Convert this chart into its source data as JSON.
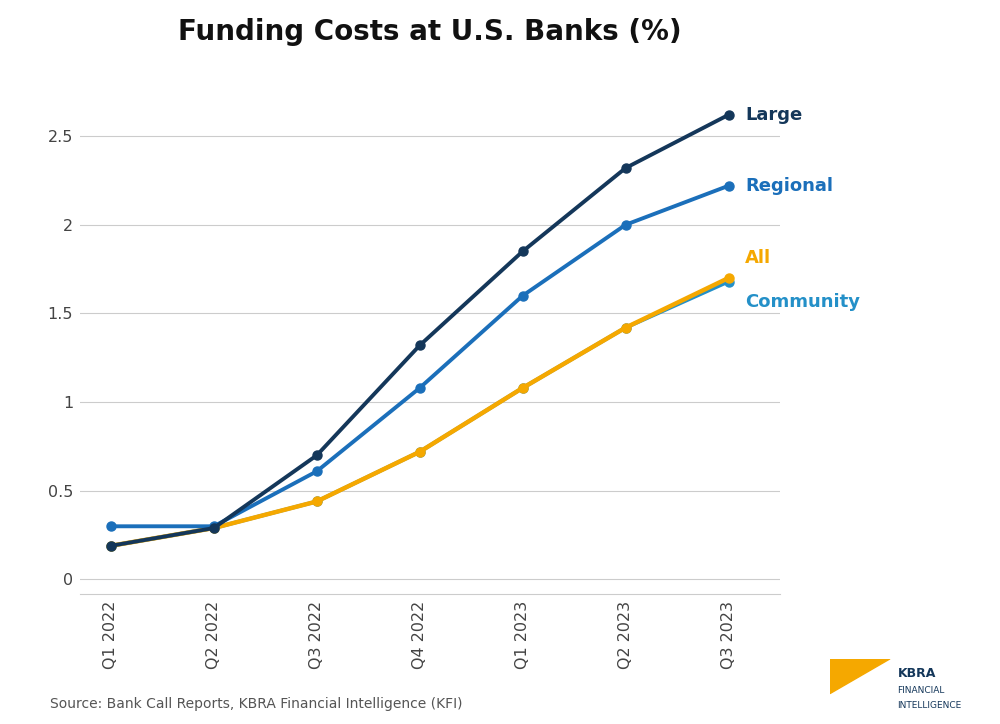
{
  "title": "Funding Costs at U.S. Banks (%)",
  "categories": [
    "Q1 2022",
    "Q2 2022",
    "Q3 2022",
    "Q4 2022",
    "Q1 2023",
    "Q2 2023",
    "Q3 2023"
  ],
  "series": {
    "Large": [
      0.19,
      0.29,
      0.7,
      1.32,
      1.85,
      2.32,
      2.62
    ],
    "Regional": [
      0.3,
      0.3,
      0.61,
      1.08,
      1.6,
      2.0,
      2.22
    ],
    "All": [
      0.19,
      0.29,
      0.44,
      0.72,
      1.08,
      1.42,
      1.7
    ],
    "Community": [
      0.19,
      0.29,
      0.44,
      0.72,
      1.08,
      1.42,
      1.68
    ]
  },
  "colors": {
    "Large": "#14375a",
    "Regional": "#1b6fba",
    "All": "#f5a800",
    "Community": "#2490c8"
  },
  "linewidths": {
    "Large": 2.8,
    "Regional": 2.8,
    "All": 3.2,
    "Community": 2.8
  },
  "label_colors": {
    "Large": "#14375a",
    "Regional": "#1b6fba",
    "All": "#f5a800",
    "Community": "#2490c8"
  },
  "ylim": [
    -0.08,
    2.9
  ],
  "yticks": [
    0,
    0.5,
    1.0,
    1.5,
    2.0,
    2.5
  ],
  "ytick_labels": [
    "0",
    "0.5",
    "1",
    "1.5",
    "2",
    "2.5"
  ],
  "source_text": "Source: Bank Call Reports, KBRA Financial Intelligence (KFI)",
  "background_color": "#ffffff",
  "grid_color": "#cccccc",
  "kbra_text": "KBRA\nFINANCIAL\nINTELLIGENCE"
}
